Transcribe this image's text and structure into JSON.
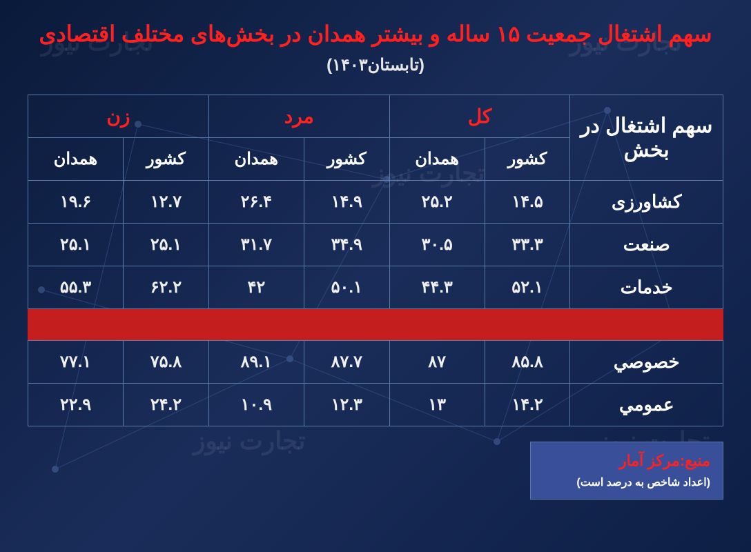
{
  "title": "سهم اشتغال جمعیت ۱۵ ساله و بیشتر همدان در بخش‌های مختلف اقتصادی",
  "subtitle": "(تابستان۱۴۰۳)",
  "watermark": "تجارت نیوز",
  "table": {
    "main_header": "سهم اشتغال در بخش",
    "groups": [
      "کل",
      "مرد",
      "زن"
    ],
    "sub_headers": [
      "کشور",
      "همدان"
    ],
    "rows_a": [
      {
        "label": "کشاورزی",
        "vals": [
          "۱۴.۵",
          "۲۵.۲",
          "۱۴.۹",
          "۲۶.۴",
          "۱۲.۷",
          "۱۹.۶"
        ]
      },
      {
        "label": "صنعت",
        "vals": [
          "۳۳.۳",
          "۳۰.۵",
          "۳۴.۹",
          "۳۱.۷",
          "۲۵.۱",
          "۲۵.۱"
        ]
      },
      {
        "label": "خدمات",
        "vals": [
          "۵۲.۱",
          "۴۴.۳",
          "۵۰.۱",
          "۴۲",
          "۶۲.۲",
          "۵۵.۳"
        ]
      }
    ],
    "rows_b": [
      {
        "label": "خصوصي",
        "vals": [
          "۸۵.۸",
          "۸۷",
          "۸۷.۷",
          "۸۹.۱",
          "۷۵.۸",
          "۷۷.۱"
        ]
      },
      {
        "label": "عمومي",
        "vals": [
          "۱۴.۲",
          "۱۳",
          "۱۲.۳",
          "۱۰.۹",
          "۲۴.۲",
          "۲۲.۹"
        ]
      }
    ]
  },
  "source": {
    "label": "منبع:مرکز آمار",
    "note": "(اعداد شاخص به درصد است)"
  },
  "style": {
    "title_color": "#ff2020",
    "header_group_color": "#ff2020",
    "text_color": "#ffffff",
    "border_color": "#5a7aaa",
    "divider_color": "#c41e1e",
    "source_box_bg": "#3a4f9a",
    "background_gradient": [
      "#0a1a3a",
      "#1a2d5a",
      "#0d1f45"
    ],
    "title_fontsize": 32,
    "header_fontsize": 28,
    "cell_fontsize": 24
  }
}
